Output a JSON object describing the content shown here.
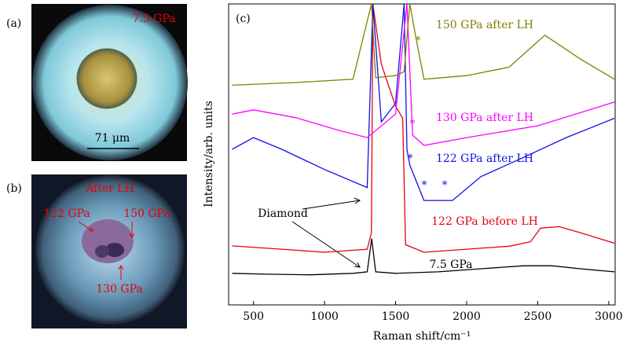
{
  "photos": {
    "a": {
      "panel": "(a)",
      "pressure": "7.5 GPa",
      "scale": "71 μm"
    },
    "b": {
      "panel": "(b)",
      "title": "After LH",
      "labels": [
        "122 GPa",
        "150 GPa",
        "130 GPa"
      ]
    }
  },
  "chart_data": {
    "type": "line",
    "panel": "(c)",
    "x_label": "Raman shift/cm⁻¹",
    "y_label": "Intensity/arb. units",
    "xlim": [
      325,
      3045
    ],
    "xticks": [
      500,
      1000,
      1500,
      2000,
      2500,
      3000
    ],
    "ylim": [
      0,
      100
    ],
    "series": [
      {
        "name": "7.5 GPa",
        "color": "#000000",
        "x": [
          350,
          600,
          900,
          1200,
          1300,
          1332,
          1360,
          1500,
          1800,
          2100,
          2400,
          2600,
          2800,
          3040
        ],
        "values": [
          10.5,
          10.2,
          10,
          10.5,
          11,
          22,
          11,
          10.5,
          11,
          12,
          13,
          13,
          12,
          11
        ]
      },
      {
        "name": "122 GPa before LH",
        "color": "#e8000b",
        "x": [
          350,
          700,
          1000,
          1300,
          1330,
          1340,
          1400,
          1500,
          1550,
          1570,
          1700,
          2000,
          2300,
          2450,
          2520,
          2650,
          2800,
          3040
        ],
        "values": [
          19.6,
          18.5,
          17.5,
          18.5,
          24,
          100,
          80,
          66,
          62,
          20,
          17.5,
          18.5,
          19.5,
          21,
          25.5,
          26,
          24,
          20.5
        ]
      },
      {
        "name": "122 GPa after LH",
        "color": "#1010e8",
        "x": [
          350,
          500,
          700,
          1000,
          1300,
          1340,
          1400,
          1500,
          1560,
          1580,
          1600,
          1700,
          1900,
          2100,
          2400,
          2700,
          3040
        ],
        "values": [
          51.7,
          55.6,
          51.7,
          45,
          39,
          100,
          60.8,
          67,
          100,
          51.7,
          46.5,
          34.7,
          34.7,
          42.6,
          49,
          55.6,
          62
        ]
      },
      {
        "name": "130 GPa after LH",
        "color": "#ff00ff",
        "x": [
          350,
          500,
          800,
          1100,
          1300,
          1500,
          1580,
          1620,
          1700,
          2000,
          2500,
          3040
        ],
        "values": [
          63.4,
          64.8,
          62.2,
          58,
          55.6,
          63.4,
          100,
          56.4,
          53,
          55.6,
          59.5,
          67.4
        ]
      },
      {
        "name": "150 GPa after LH",
        "color": "#808000",
        "x": [
          350,
          800,
          1200,
          1330,
          1360,
          1500,
          1560,
          1600,
          1650,
          1700,
          2000,
          2300,
          2550,
          2800,
          3040
        ],
        "values": [
          73,
          73.9,
          75,
          100,
          75.5,
          76.2,
          77.5,
          100,
          87,
          75,
          76.2,
          79,
          89.6,
          81.7,
          75
        ]
      }
    ],
    "annotations": {
      "diamond": "Diamond",
      "asterisk": "*"
    }
  }
}
